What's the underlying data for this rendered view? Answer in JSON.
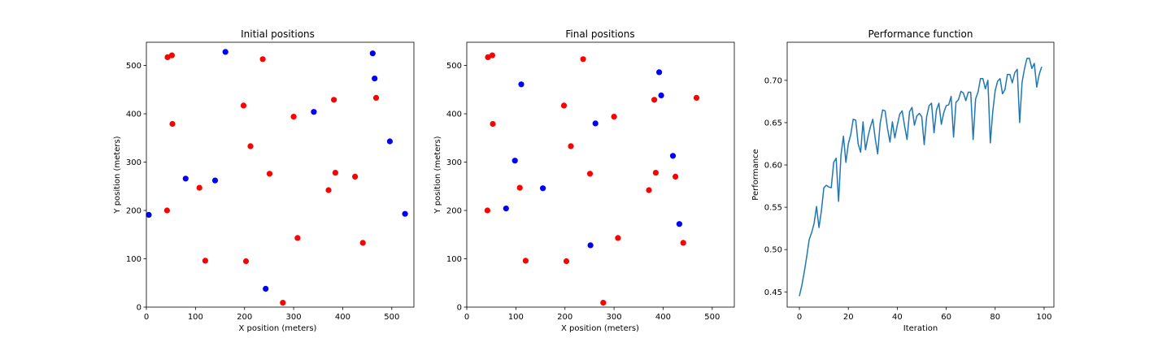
{
  "chart_data": [
    {
      "type": "scatter",
      "title": "Initial positions",
      "xlabel": "X position (meters)",
      "ylabel": "Y position (meters)",
      "xlim": [
        0,
        545
      ],
      "ylim": [
        0,
        548
      ],
      "xticks": [
        0,
        100,
        200,
        300,
        400,
        500
      ],
      "yticks": [
        0,
        100,
        200,
        300,
        400,
        500
      ],
      "grid": false,
      "series": [
        {
          "color": "#ff0000",
          "points": [
            [
              43,
              517
            ],
            [
              52,
              521
            ],
            [
              53,
              379
            ],
            [
              42,
              200
            ],
            [
              108,
              247
            ],
            [
              120,
              96
            ],
            [
              198,
              417
            ],
            [
              212,
              333
            ],
            [
              203,
              95
            ],
            [
              237,
              513
            ],
            [
              251,
              276
            ],
            [
              300,
              394
            ],
            [
              308,
              143
            ],
            [
              278,
              9
            ],
            [
              382,
              429
            ],
            [
              385,
              278
            ],
            [
              371,
              242
            ],
            [
              425,
              270
            ],
            [
              468,
              433
            ],
            [
              441,
              133
            ]
          ]
        },
        {
          "color": "#0000ff",
          "points": [
            [
              5,
              191
            ],
            [
              80,
              266
            ],
            [
              140,
              262
            ],
            [
              161,
              528
            ],
            [
              243,
              38
            ],
            [
              341,
              404
            ],
            [
              461,
              525
            ],
            [
              465,
              473
            ],
            [
              496,
              343
            ],
            [
              527,
              193
            ]
          ]
        }
      ]
    },
    {
      "type": "scatter",
      "title": "Final positions",
      "xlabel": "X position (meters)",
      "ylabel": "Y position (meters)",
      "xlim": [
        0,
        545
      ],
      "ylim": [
        0,
        548
      ],
      "xticks": [
        0,
        100,
        200,
        300,
        400,
        500
      ],
      "yticks": [
        0,
        100,
        200,
        300,
        400,
        500
      ],
      "grid": false,
      "series": [
        {
          "color": "#ff0000",
          "points": [
            [
              43,
              517
            ],
            [
              52,
              521
            ],
            [
              53,
              379
            ],
            [
              42,
              200
            ],
            [
              108,
              247
            ],
            [
              120,
              96
            ],
            [
              198,
              417
            ],
            [
              212,
              333
            ],
            [
              203,
              95
            ],
            [
              237,
              513
            ],
            [
              251,
              276
            ],
            [
              300,
              394
            ],
            [
              308,
              143
            ],
            [
              278,
              9
            ],
            [
              382,
              429
            ],
            [
              385,
              278
            ],
            [
              371,
              242
            ],
            [
              425,
              270
            ],
            [
              468,
              433
            ],
            [
              441,
              133
            ]
          ]
        },
        {
          "color": "#0000ff",
          "points": [
            [
              80,
              204
            ],
            [
              98,
              303
            ],
            [
              111,
              461
            ],
            [
              155,
              246
            ],
            [
              252,
              128
            ],
            [
              262,
              380
            ],
            [
              392,
              486
            ],
            [
              396,
              438
            ],
            [
              420,
              313
            ],
            [
              433,
              172
            ]
          ]
        }
      ]
    },
    {
      "type": "line",
      "title": "Performance function",
      "xlabel": "Iteration",
      "ylabel": "Performance",
      "xlim": [
        -5,
        104
      ],
      "ylim": [
        0.432,
        0.745
      ],
      "xticks": [
        0,
        20,
        40,
        60,
        80,
        100
      ],
      "yticks": [
        0.45,
        0.5,
        0.55,
        0.6,
        0.65,
        0.7
      ],
      "ytick_labels": [
        "0.45",
        "0.50",
        "0.55",
        "0.60",
        "0.65",
        "0.70"
      ],
      "grid": false,
      "series": [
        {
          "color": "#1f77b4",
          "x": [
            0,
            1,
            2,
            3,
            4,
            5,
            6,
            7,
            8,
            9,
            10,
            11,
            12,
            13,
            14,
            15,
            16,
            17,
            18,
            19,
            20,
            21,
            22,
            23,
            24,
            25,
            26,
            27,
            28,
            29,
            30,
            31,
            32,
            33,
            34,
            35,
            36,
            37,
            38,
            39,
            40,
            41,
            42,
            43,
            44,
            45,
            46,
            47,
            48,
            49,
            50,
            51,
            52,
            53,
            54,
            55,
            56,
            57,
            58,
            59,
            60,
            61,
            62,
            63,
            64,
            65,
            66,
            67,
            68,
            69,
            70,
            71,
            72,
            73,
            74,
            75,
            76,
            77,
            78,
            79,
            80,
            81,
            82,
            83,
            84,
            85,
            86,
            87,
            88,
            89,
            90,
            91,
            92,
            93,
            94,
            95,
            96,
            97,
            98,
            99
          ],
          "values": [
            0.445,
            0.458,
            0.474,
            0.492,
            0.512,
            0.52,
            0.531,
            0.551,
            0.526,
            0.546,
            0.573,
            0.576,
            0.574,
            0.573,
            0.603,
            0.608,
            0.557,
            0.612,
            0.634,
            0.603,
            0.625,
            0.636,
            0.654,
            0.653,
            0.625,
            0.615,
            0.651,
            0.618,
            0.633,
            0.645,
            0.654,
            0.631,
            0.613,
            0.649,
            0.665,
            0.664,
            0.643,
            0.627,
            0.651,
            0.632,
            0.647,
            0.66,
            0.664,
            0.646,
            0.63,
            0.663,
            0.668,
            0.647,
            0.658,
            0.661,
            0.657,
            0.624,
            0.657,
            0.67,
            0.673,
            0.638,
            0.665,
            0.673,
            0.648,
            0.662,
            0.67,
            0.671,
            0.681,
            0.633,
            0.674,
            0.677,
            0.687,
            0.685,
            0.676,
            0.686,
            0.686,
            0.63,
            0.678,
            0.686,
            0.702,
            0.702,
            0.69,
            0.7,
            0.626,
            0.663,
            0.688,
            0.699,
            0.702,
            0.684,
            0.689,
            0.707,
            0.707,
            0.697,
            0.709,
            0.713,
            0.65,
            0.698,
            0.714,
            0.726,
            0.726,
            0.714,
            0.72,
            0.692,
            0.707,
            0.716
          ]
        }
      ]
    }
  ]
}
